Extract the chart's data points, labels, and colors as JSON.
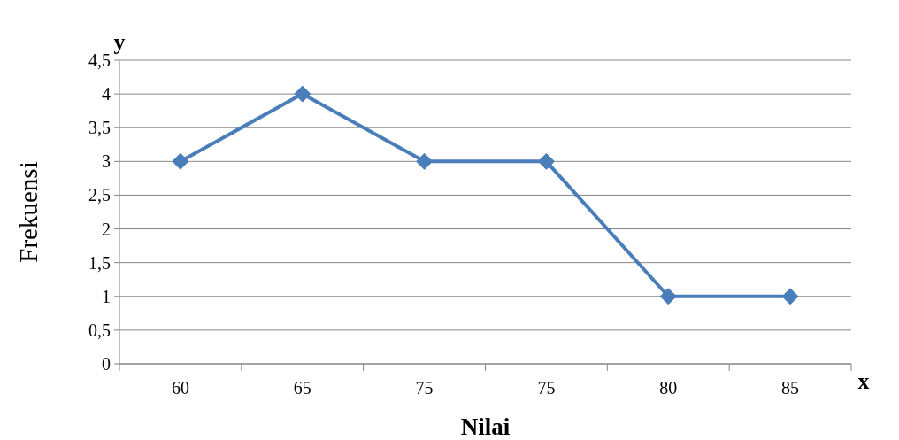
{
  "chart_data": {
    "type": "line",
    "xlabel": "Nilai",
    "ylabel": "Frekuensi",
    "annotations": [
      "y",
      "x"
    ],
    "categories": [
      "60",
      "65",
      "75",
      "75",
      "80",
      "85"
    ],
    "series": [
      {
        "color": "#4a7ebb",
        "values": [
          3,
          4,
          3,
          3,
          1,
          1
        ]
      }
    ],
    "ylim": [
      0,
      4.5
    ],
    "yticks": [
      0,
      {
        "value": 0.5,
        "label": "0,5"
      },
      1,
      {
        "value": 1.5,
        "label": "1,5"
      },
      2,
      {
        "value": 2.5,
        "label": "2,5"
      },
      3,
      {
        "value": 3.5,
        "label": "3,5"
      },
      4,
      {
        "value": 4.5,
        "label": "4,5"
      }
    ],
    "grid": "y",
    "marker": "diamond",
    "line_style": "solid"
  }
}
